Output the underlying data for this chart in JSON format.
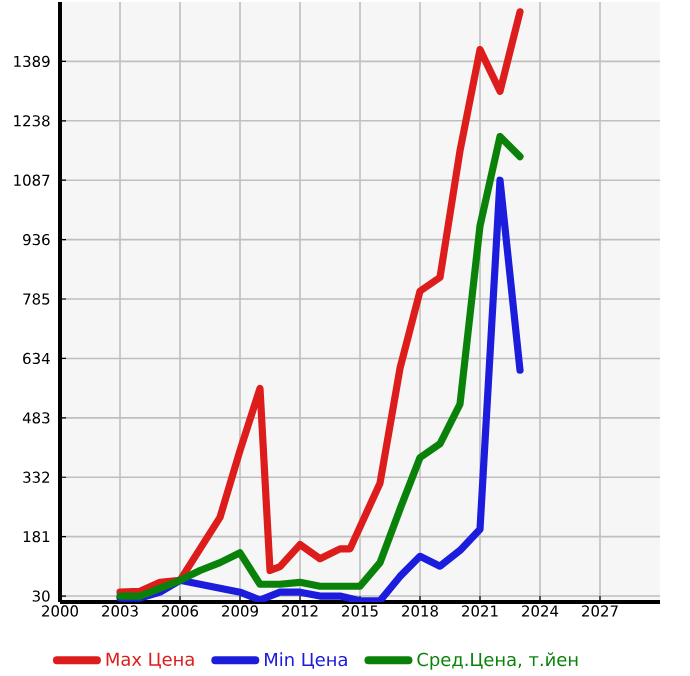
{
  "chart_data": {
    "type": "line",
    "x": [
      2003,
      2004,
      2005,
      2006,
      2007,
      2008,
      2009,
      2010,
      2011,
      2012,
      2013,
      2014,
      2015,
      2016,
      2017,
      2018,
      2019,
      2020,
      2021,
      2022,
      2023
    ],
    "series": [
      {
        "name": "Max Цена",
        "color": "#dd1c1c",
        "values": [
          40,
          42,
          65,
          70,
          230,
          400,
          558,
          95,
          105,
          161,
          125,
          150,
          150,
          317,
          609,
          805,
          840,
          1162,
          1419,
          1313,
          1515
        ],
        "x": [
          2003,
          2004,
          2005,
          2006,
          2008,
          2009,
          2010,
          2010.5,
          2011,
          2012,
          2013,
          2014,
          2014.5,
          2016,
          2017,
          2018,
          2019,
          2020,
          2021,
          2022,
          2023
        ]
      },
      {
        "name": "Min Цена",
        "color": "#1c1cdd",
        "values": [
          25,
          25,
          40,
          70,
          60,
          50,
          40,
          20,
          40,
          40,
          30,
          30,
          18,
          18,
          80,
          131,
          106,
          146,
          200,
          1087,
          604
        ]
      },
      {
        "name": "Сред.Цена, т.йен",
        "color": "#0a820a",
        "values": [
          30,
          30,
          50,
          70,
          95,
          115,
          140,
          60,
          60,
          65,
          55,
          55,
          55,
          115,
          251,
          382,
          417,
          518,
          971,
          1198,
          1147
        ]
      }
    ],
    "xlim": [
      2000,
      2030
    ],
    "xticks": [
      2000,
      2003,
      2006,
      2009,
      2012,
      2015,
      2018,
      2021,
      2024,
      2027
    ],
    "ylim": [
      15,
      1540
    ],
    "yticks": [
      30,
      181,
      332,
      483,
      634,
      785,
      936,
      1087,
      1238,
      1389
    ],
    "grid": true,
    "legend": "bottom",
    "marker": "none",
    "line_style": "solid"
  }
}
